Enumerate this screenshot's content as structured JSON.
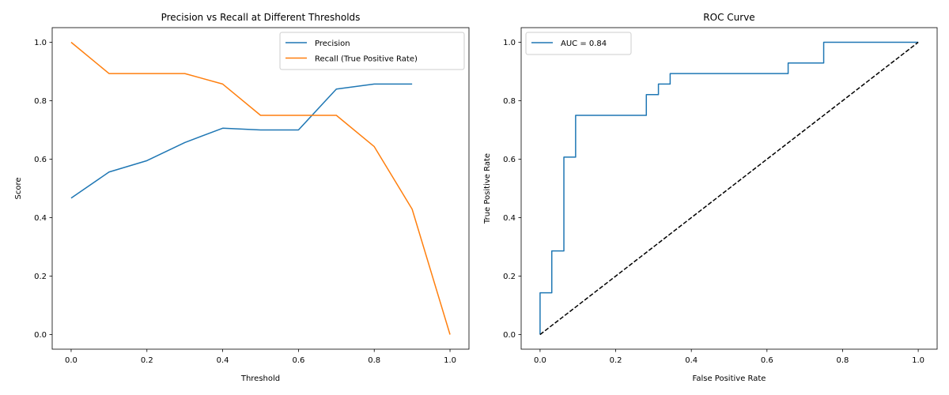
{
  "colors": {
    "blue": "#1f77b4",
    "orange": "#ff7f0e",
    "diagonal": "#000000"
  },
  "chart_data": [
    {
      "type": "line",
      "title": "Precision vs Recall at Different Thresholds",
      "xlabel": "Threshold",
      "ylabel": "Score",
      "xlim": [
        -0.05,
        1.05
      ],
      "ylim": [
        -0.05,
        1.05
      ],
      "xticks": [
        0.0,
        0.2,
        0.4,
        0.6,
        0.8,
        1.0
      ],
      "xtick_labels": [
        "0.0",
        "0.2",
        "0.4",
        "0.6",
        "0.8",
        "1.0"
      ],
      "yticks": [
        0.0,
        0.2,
        0.4,
        0.6,
        0.8,
        1.0
      ],
      "ytick_labels": [
        "0.0",
        "0.2",
        "0.4",
        "0.6",
        "0.8",
        "1.0"
      ],
      "legend_position": "top-right",
      "grid": false,
      "series": [
        {
          "name": "Precision",
          "color": "#1f77b4",
          "x": [
            0.0,
            0.1,
            0.2,
            0.3,
            0.4,
            0.5,
            0.6,
            0.7,
            0.8,
            0.9
          ],
          "y": [
            0.467,
            0.556,
            0.595,
            0.657,
            0.706,
            0.7,
            0.7,
            0.84,
            0.857,
            0.857
          ]
        },
        {
          "name": "Recall (True Positive Rate)",
          "color": "#ff7f0e",
          "x": [
            0.0,
            0.1,
            0.2,
            0.3,
            0.4,
            0.5,
            0.6,
            0.7,
            0.8,
            0.9,
            1.0
          ],
          "y": [
            1.0,
            0.893,
            0.893,
            0.893,
            0.857,
            0.75,
            0.75,
            0.75,
            0.643,
            0.429,
            0.0
          ]
        }
      ]
    },
    {
      "type": "line",
      "title": "ROC Curve",
      "xlabel": "False Positive Rate",
      "ylabel": "True Positive Rate",
      "xlim": [
        -0.05,
        1.05
      ],
      "ylim": [
        -0.05,
        1.05
      ],
      "xticks": [
        0.0,
        0.2,
        0.4,
        0.6,
        0.8,
        1.0
      ],
      "xtick_labels": [
        "0.0",
        "0.2",
        "0.4",
        "0.6",
        "0.8",
        "1.0"
      ],
      "yticks": [
        0.0,
        0.2,
        0.4,
        0.6,
        0.8,
        1.0
      ],
      "ytick_labels": [
        "0.0",
        "0.2",
        "0.4",
        "0.6",
        "0.8",
        "1.0"
      ],
      "legend_position": "top-left",
      "grid": false,
      "series": [
        {
          "name": "AUC = 0.84",
          "color": "#1f77b4",
          "x": [
            0.0,
            0.0,
            0.031,
            0.031,
            0.063,
            0.063,
            0.094,
            0.094,
            0.281,
            0.281,
            0.313,
            0.313,
            0.344,
            0.344,
            0.656,
            0.656,
            0.75,
            0.75,
            1.0
          ],
          "y": [
            0.0,
            0.143,
            0.143,
            0.286,
            0.286,
            0.607,
            0.607,
            0.75,
            0.75,
            0.821,
            0.821,
            0.857,
            0.857,
            0.893,
            0.893,
            0.929,
            0.929,
            1.0,
            1.0
          ]
        },
        {
          "color": "#000000",
          "style": "dashed",
          "x": [
            0.0,
            1.0
          ],
          "y": [
            0.0,
            1.0
          ]
        }
      ]
    }
  ]
}
